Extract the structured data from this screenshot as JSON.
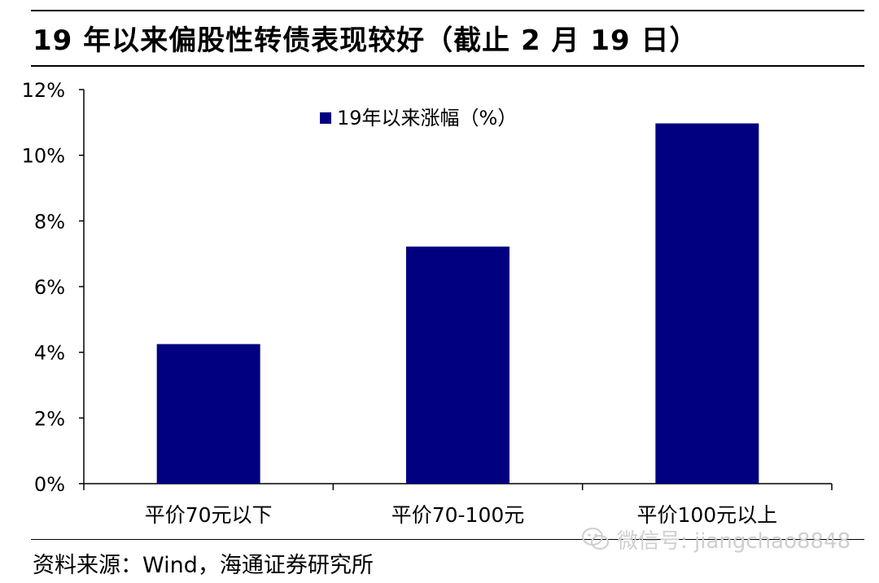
{
  "title": "19 年以来偏股性转债表现较好（截止 2 月 19 日）",
  "source": "资料来源：Wind，海通证券研究所",
  "watermark": "微信号: jiangchao8848",
  "colors": {
    "bar": "#000080",
    "axis": "#000000",
    "watermark": "#cfcfcf"
  },
  "chart_data": {
    "type": "bar",
    "categories": [
      "平价70元以下",
      "平价70-100元",
      "平价100元以上"
    ],
    "series": [
      {
        "name": "19年以来涨幅（%）",
        "values": [
          4.25,
          7.22,
          10.97
        ]
      }
    ],
    "yticks": [
      "0%",
      "2%",
      "4%",
      "6%",
      "8%",
      "10%",
      "12%"
    ],
    "ylim": [
      0,
      12
    ],
    "xlabel": "",
    "ylabel": "",
    "grid": false,
    "legend": "top-center"
  }
}
